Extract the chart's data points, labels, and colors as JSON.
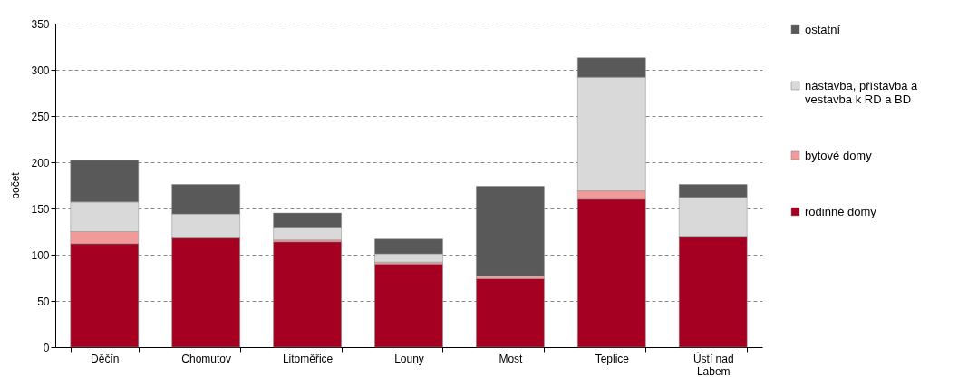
{
  "chart_data": {
    "type": "bar",
    "stacked": true,
    "ylabel": "počet",
    "categories": [
      "Děčín",
      "Chomutov",
      "Litoměřice",
      "Louny",
      "Most",
      "Teplice",
      "Ústí nad Labem"
    ],
    "series": [
      {
        "name": "rodinné domy",
        "color": "#a50021",
        "values": [
          112,
          118,
          114,
          90,
          74,
          160,
          119
        ]
      },
      {
        "name": "bytové domy",
        "color": "#f29a9a",
        "values": [
          13,
          1,
          2,
          2,
          3,
          9,
          1
        ]
      },
      {
        "name": "nástavba, přístavba a vestavba k RD a BD",
        "color": "#d9d9d9",
        "values": [
          32,
          25,
          13,
          9,
          0,
          123,
          42
        ]
      },
      {
        "name": "ostatní",
        "color": "#595959",
        "values": [
          45,
          32,
          16,
          16,
          97,
          21,
          14
        ]
      }
    ],
    "ylim": [
      0,
      350
    ],
    "yticks": [
      0,
      50,
      100,
      150,
      200,
      250,
      300,
      350
    ],
    "grid": "y",
    "legend": "right"
  }
}
